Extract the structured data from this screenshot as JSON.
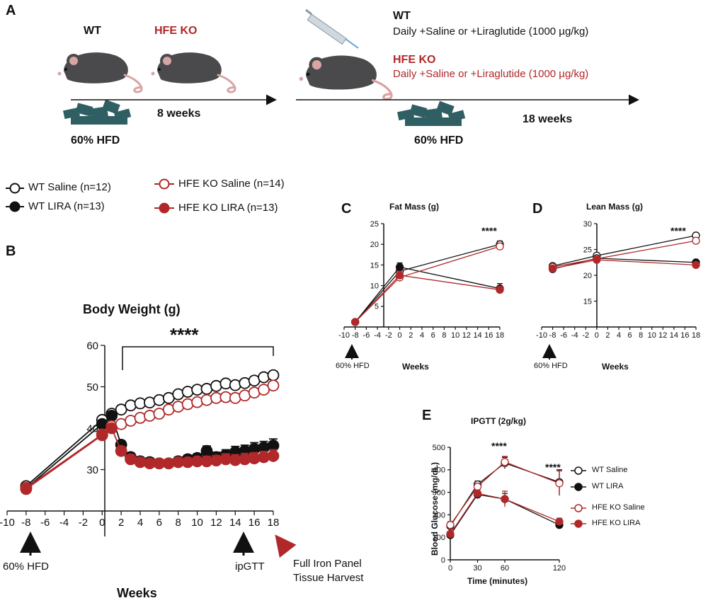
{
  "colors": {
    "wt": "#111111",
    "ko": "#b0282a",
    "food": "#2f5f62",
    "mouse": "#4a4a4c",
    "ear": "#d9a4a4"
  },
  "panelA": {
    "letter": "A",
    "wt_label": "WT",
    "ko_label": "HFE KO",
    "weeks1": "8 weeks",
    "weeks2": "18 weeks",
    "hfd1": "60% HFD",
    "hfd2": "60% HFD",
    "treat_wt_title": "WT",
    "treat_wt_text": "Daily +Saline or +Liraglutide (1000 µg/kg)",
    "treat_ko_title": "HFE KO",
    "treat_ko_text": "Daily +Saline or +Liraglutide  (1000 µg/kg)"
  },
  "legend_main": [
    {
      "label": "WT Saline (n=12)",
      "color": "wt",
      "filled": false
    },
    {
      "label": "WT LIRA (n=13)",
      "color": "wt",
      "filled": true
    },
    {
      "label": "HFE KO Saline (n=14)",
      "color": "ko",
      "filled": false
    },
    {
      "label": "HFE KO LIRA (n=13)",
      "color": "ko",
      "filled": true
    }
  ],
  "panelB": {
    "letter": "B",
    "annot_sig": "****",
    "annot_hfd": "60% HFD",
    "annot_ipgtt": "ipGTT",
    "annot_harvest1": "Full Iron Panel",
    "annot_harvest2": "Tissue Harvest"
  },
  "panelC": {
    "letter": "C",
    "annot_sig": "****",
    "annot_hfd": "60% HFD"
  },
  "panelD": {
    "letter": "D",
    "annot_sig": "****",
    "annot_hfd": "60% HFD"
  },
  "panelE": {
    "letter": "E",
    "annot_sig1": "****",
    "annot_sig2": "****",
    "legend": [
      {
        "label": "WT Saline",
        "color": "wt",
        "filled": false
      },
      {
        "label": "WT LIRA",
        "color": "wt",
        "filled": true
      },
      {
        "label": "HFE KO Saline",
        "color": "ko",
        "filled": false
      },
      {
        "label": "HFE KO LIRA",
        "color": "ko",
        "filled": true
      }
    ]
  },
  "chart_data": [
    {
      "id": "B",
      "type": "line",
      "title": "Body Weight (g)",
      "xlabel": "Weeks",
      "ylabel": "",
      "xlim": [
        -10,
        18
      ],
      "ylim": [
        20,
        60
      ],
      "xticks": [
        -10,
        -8,
        -6,
        -4,
        -2,
        0,
        2,
        4,
        6,
        8,
        10,
        12,
        14,
        16,
        18
      ],
      "yticks": [
        30,
        40,
        50,
        60
      ],
      "series": [
        {
          "name": "WT Saline",
          "color": "wt",
          "filled": false,
          "x": [
            -8,
            0,
            1,
            2,
            3,
            4,
            5,
            6,
            7,
            8,
            9,
            10,
            11,
            12,
            13,
            14,
            15,
            16,
            17,
            18
          ],
          "y": [
            26,
            42,
            43.5,
            44.5,
            45.5,
            46,
            46.2,
            46.8,
            47.3,
            48.2,
            48.8,
            49.3,
            49.5,
            50.2,
            50.8,
            50.4,
            50.9,
            51.5,
            52.3,
            52.8
          ],
          "err": [
            0.6,
            0.8,
            0.8,
            0.8,
            0.8,
            0.8,
            0.8,
            0.8,
            0.8,
            0.8,
            0.8,
            0.8,
            0.8,
            0.8,
            0.8,
            0.8,
            0.8,
            0.8,
            0.8,
            0.9
          ]
        },
        {
          "name": "WT LIRA",
          "color": "wt",
          "filled": true,
          "x": [
            -8,
            0,
            1,
            2,
            3,
            4,
            5,
            6,
            7,
            8,
            9,
            10,
            11,
            12,
            13,
            14,
            15,
            16,
            17,
            18
          ],
          "y": [
            25.5,
            41,
            43,
            36,
            33,
            32,
            31.8,
            31.5,
            31.5,
            32,
            32.5,
            32.8,
            34.5,
            33,
            33.5,
            34.2,
            34.5,
            35,
            35.3,
            35.8
          ],
          "err": [
            0.6,
            0.8,
            0.8,
            1,
            1,
            1,
            1,
            1,
            1,
            1,
            1,
            1,
            1.2,
            1.2,
            1.3,
            1.4,
            1.4,
            1.5,
            1.5,
            1.6
          ]
        },
        {
          "name": "HFE KO Saline",
          "color": "ko",
          "filled": false,
          "x": [
            -8,
            0,
            1,
            2,
            3,
            4,
            5,
            6,
            7,
            8,
            9,
            10,
            11,
            12,
            13,
            14,
            15,
            16,
            17,
            18
          ],
          "y": [
            25.6,
            38.5,
            40.5,
            41,
            41.8,
            42.5,
            43,
            43.5,
            44.5,
            45.2,
            45.8,
            46.3,
            46.8,
            47.3,
            47.5,
            47.3,
            47.9,
            48.6,
            49.3,
            50.3
          ],
          "err": [
            0.6,
            0.8,
            0.8,
            0.8,
            0.8,
            0.8,
            0.8,
            0.8,
            0.8,
            0.8,
            0.8,
            0.8,
            0.8,
            0.8,
            0.8,
            0.8,
            0.8,
            0.8,
            0.8,
            0.9
          ]
        },
        {
          "name": "HFE KO LIRA",
          "color": "ko",
          "filled": true,
          "x": [
            -8,
            0,
            1,
            2,
            3,
            4,
            5,
            6,
            7,
            8,
            9,
            10,
            11,
            12,
            13,
            14,
            15,
            16,
            17,
            18
          ],
          "y": [
            25.3,
            38.3,
            40,
            34.5,
            32.5,
            31.8,
            31.5,
            31.5,
            31.5,
            31.8,
            31.8,
            32,
            32,
            32.2,
            32.5,
            32.3,
            32.5,
            32.7,
            33,
            33.3
          ],
          "err": [
            0.6,
            0.8,
            0.8,
            1,
            1,
            1,
            1,
            1,
            1,
            1,
            1,
            1,
            1.2,
            1.2,
            1.3,
            1.3,
            1.4,
            1.4,
            1.4,
            1.5
          ]
        }
      ]
    },
    {
      "id": "C",
      "type": "line",
      "title": "Fat Mass (g)",
      "xlabel": "Weeks",
      "ylabel": "",
      "xlim": [
        -10,
        18
      ],
      "ylim": [
        0,
        25
      ],
      "xticks": [
        -10,
        -8,
        -6,
        -4,
        -2,
        0,
        2,
        4,
        6,
        8,
        10,
        12,
        14,
        16,
        18
      ],
      "yticks": [
        5,
        10,
        15,
        20,
        25
      ],
      "series": [
        {
          "name": "WT Saline",
          "color": "wt",
          "filled": false,
          "x": [
            -8,
            0,
            18
          ],
          "y": [
            1.2,
            13.5,
            20
          ],
          "err": [
            0.2,
            1,
            0.8
          ]
        },
        {
          "name": "WT LIRA",
          "color": "wt",
          "filled": true,
          "x": [
            -8,
            0,
            18
          ],
          "y": [
            1.2,
            14.5,
            9.3
          ],
          "err": [
            0.2,
            1,
            1.2
          ]
        },
        {
          "name": "HFE KO Saline",
          "color": "ko",
          "filled": false,
          "x": [
            -8,
            0,
            18
          ],
          "y": [
            1.2,
            12,
            19.5
          ],
          "err": [
            0.2,
            1,
            0.8
          ]
        },
        {
          "name": "HFE KO LIRA",
          "color": "ko",
          "filled": true,
          "x": [
            -8,
            0,
            18
          ],
          "y": [
            1.2,
            12.5,
            9
          ],
          "err": [
            0.2,
            1,
            0.8
          ]
        }
      ]
    },
    {
      "id": "D",
      "type": "line",
      "title": "Lean Mass (g)",
      "xlabel": "Weeks",
      "ylabel": "",
      "xlim": [
        -10,
        18
      ],
      "ylim": [
        10,
        30
      ],
      "xticks": [
        -10,
        -8,
        -6,
        -4,
        -2,
        0,
        2,
        4,
        6,
        8,
        10,
        12,
        14,
        16,
        18
      ],
      "yticks": [
        15,
        20,
        25,
        30
      ],
      "series": [
        {
          "name": "WT Saline",
          "color": "wt",
          "filled": false,
          "x": [
            -8,
            0,
            18
          ],
          "y": [
            21.8,
            23.8,
            27.7
          ],
          "err": [
            0.3,
            0.4,
            0.4
          ]
        },
        {
          "name": "WT LIRA",
          "color": "wt",
          "filled": true,
          "x": [
            -8,
            0,
            18
          ],
          "y": [
            21.2,
            23.3,
            22.5
          ],
          "err": [
            0.3,
            0.4,
            0.4
          ]
        },
        {
          "name": "HFE KO Saline",
          "color": "ko",
          "filled": false,
          "x": [
            -8,
            0,
            18
          ],
          "y": [
            21.6,
            23.2,
            26.7
          ],
          "err": [
            0.3,
            0.4,
            0.4
          ]
        },
        {
          "name": "HFE KO LIRA",
          "color": "ko",
          "filled": true,
          "x": [
            -8,
            0,
            18
          ],
          "y": [
            21.3,
            23,
            22
          ],
          "err": [
            0.3,
            0.4,
            0.4
          ]
        }
      ]
    },
    {
      "id": "E",
      "type": "line",
      "title": "IPGTT  (2g/kg)",
      "xlabel": "Time (minutes)",
      "ylabel": "Blood Glucose (mg/dL)",
      "xlim": [
        0,
        120
      ],
      "ylim": [
        0,
        500
      ],
      "xticks": [
        0,
        30,
        60,
        120
      ],
      "yticks": [
        0,
        100,
        200,
        300,
        400,
        500
      ],
      "series": [
        {
          "name": "WT Saline",
          "color": "wt",
          "filled": false,
          "x": [
            0,
            30,
            60,
            120
          ],
          "y": [
            150,
            335,
            430,
            345
          ],
          "err": [
            15,
            15,
            25,
            55
          ]
        },
        {
          "name": "WT LIRA",
          "color": "wt",
          "filled": true,
          "x": [
            0,
            30,
            60,
            120
          ],
          "y": [
            110,
            290,
            270,
            155
          ],
          "err": [
            10,
            15,
            25,
            15
          ]
        },
        {
          "name": "HFE KO Saline",
          "color": "ko",
          "filled": false,
          "x": [
            0,
            30,
            60,
            120
          ],
          "y": [
            155,
            325,
            435,
            340
          ],
          "err": [
            15,
            15,
            25,
            55
          ]
        },
        {
          "name": "HFE KO LIRA",
          "color": "ko",
          "filled": true,
          "x": [
            0,
            30,
            60,
            120
          ],
          "y": [
            115,
            295,
            270,
            170
          ],
          "err": [
            10,
            15,
            35,
            15
          ]
        }
      ]
    }
  ]
}
